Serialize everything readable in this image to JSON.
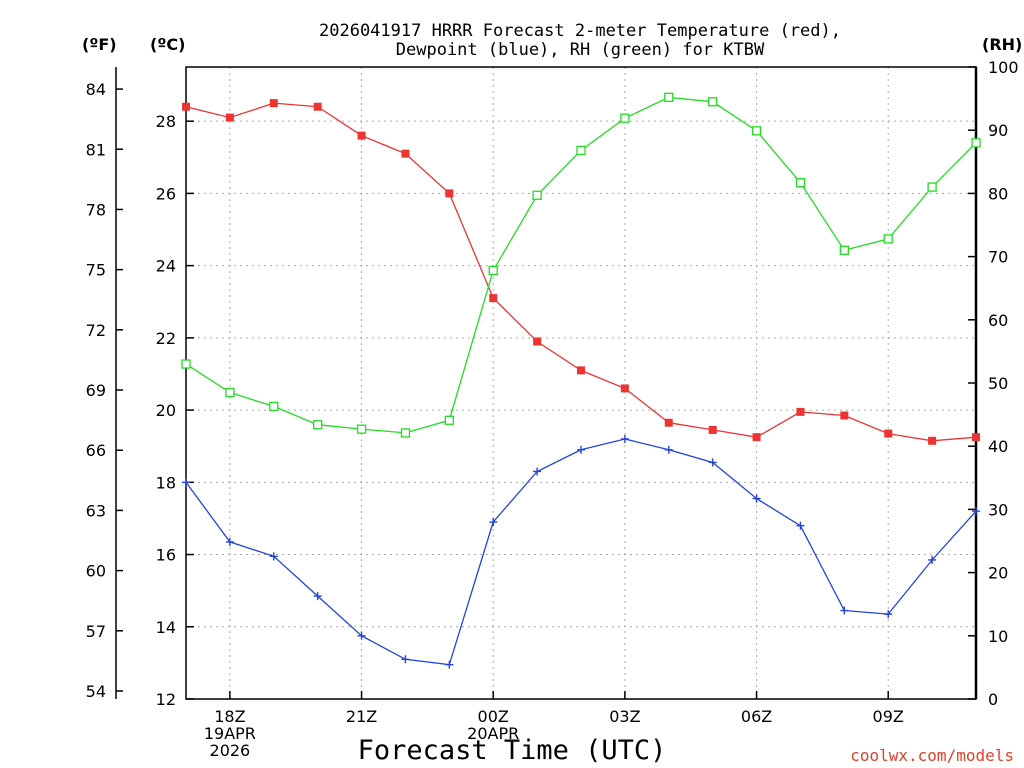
{
  "chart_data": {
    "type": "line",
    "title_line1": "2026041917 HRRR Forecast 2-meter Temperature (red),",
    "title_line2": "Dewpoint (blue), RH (green) for KTBW",
    "xlabel": "Forecast Time (UTC)",
    "credit": "coolwx.com/models",
    "unit_labels": {
      "fahrenheit": "(ºF)",
      "celsius": "(ºC)",
      "rh": "(RH)"
    },
    "x_hours": [
      0,
      1,
      2,
      3,
      4,
      5,
      6,
      7,
      8,
      9,
      10,
      11,
      12,
      13,
      14,
      15,
      16,
      17,
      18
    ],
    "xlim": [
      0,
      18
    ],
    "x_ticks": [
      {
        "hour": 1,
        "lines": [
          "18Z",
          "19APR",
          "2026"
        ]
      },
      {
        "hour": 4,
        "lines": [
          "21Z"
        ]
      },
      {
        "hour": 7,
        "lines": [
          "00Z",
          "20APR"
        ]
      },
      {
        "hour": 10,
        "lines": [
          "03Z"
        ]
      },
      {
        "hour": 13,
        "lines": [
          "06Z"
        ]
      },
      {
        "hour": 16,
        "lines": [
          "09Z"
        ]
      }
    ],
    "celsius_axis": {
      "range": [
        12,
        29.5
      ],
      "ticks": [
        "12",
        "14",
        "16",
        "18",
        "20",
        "22",
        "24",
        "26",
        "28"
      ]
    },
    "fahrenheit_ticks": [
      "54",
      "57",
      "60",
      "63",
      "66",
      "69",
      "72",
      "75",
      "78",
      "81",
      "84"
    ],
    "rh_axis": {
      "range": [
        0,
        100
      ],
      "ticks": [
        "0",
        "10",
        "20",
        "30",
        "40",
        "50",
        "60",
        "70",
        "80",
        "90",
        "100"
      ]
    },
    "series": [
      {
        "name": "Temperature",
        "axis": "celsius",
        "color": "#ee3333",
        "marker": "filled-square",
        "values": [
          28.4,
          28.1,
          28.5,
          28.4,
          27.6,
          27.1,
          26.0,
          23.1,
          21.9,
          21.1,
          20.6,
          19.65,
          19.45,
          19.25,
          19.95,
          19.85,
          19.35,
          19.15,
          19.25
        ]
      },
      {
        "name": "Dewpoint",
        "axis": "celsius",
        "color": "#2244dd",
        "marker": "plus",
        "values": [
          18.0,
          16.35,
          15.95,
          14.85,
          13.75,
          13.1,
          12.95,
          16.9,
          18.3,
          18.9,
          19.2,
          18.9,
          18.55,
          17.55,
          16.8,
          14.45,
          14.35,
          15.85,
          17.2
        ]
      },
      {
        "name": "RH",
        "axis": "rh",
        "color": "#22dd22",
        "marker": "open-square",
        "values": [
          53.0,
          48.5,
          46.3,
          43.4,
          42.7,
          42.1,
          44.1,
          67.8,
          79.7,
          86.8,
          91.9,
          95.2,
          94.5,
          89.9,
          81.7,
          71.0,
          72.8,
          81.0,
          88.0
        ]
      }
    ]
  }
}
